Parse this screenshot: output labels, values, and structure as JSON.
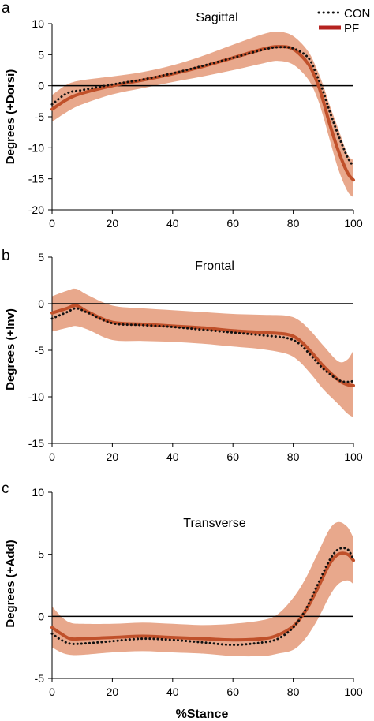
{
  "colors": {
    "band": "#e8a88c",
    "pf_line": "#c0502a",
    "con_dots": "#111111",
    "legend_pf": "#b5221f"
  },
  "legend": {
    "con_label": "CON",
    "pf_label": "PF",
    "position": "top-right"
  },
  "xlabel": "%Stance",
  "chart_data": [
    {
      "type": "line",
      "panel": "a",
      "title": "Sagittal",
      "ylabel": "Degrees (+Dorsi)",
      "xlim": [
        0,
        100
      ],
      "ylim": [
        -20,
        10
      ],
      "xticks": [
        0,
        20,
        40,
        60,
        80,
        100
      ],
      "yticks": [
        -20,
        -15,
        -10,
        -5,
        0,
        5,
        10
      ],
      "zero_line": true,
      "series": [
        {
          "name": "CON",
          "style": "dotted",
          "x": [
            0,
            5,
            10,
            20,
            30,
            40,
            50,
            60,
            70,
            75,
            80,
            85,
            88,
            90,
            92,
            95,
            98,
            100
          ],
          "y": [
            -3,
            -1.2,
            -0.7,
            0.2,
            1.0,
            2.0,
            3.2,
            4.5,
            5.8,
            6.2,
            6.0,
            4.5,
            1.5,
            -1.0,
            -4.0,
            -8.0,
            -11.5,
            -13
          ]
        },
        {
          "name": "PF",
          "style": "solid",
          "x": [
            0,
            5,
            10,
            20,
            30,
            40,
            50,
            60,
            70,
            75,
            80,
            85,
            88,
            90,
            92,
            95,
            98,
            100
          ],
          "y": [
            -3.8,
            -2.2,
            -1.2,
            0.0,
            0.9,
            1.9,
            3.1,
            4.5,
            5.9,
            6.3,
            5.9,
            3.5,
            0.5,
            -2.5,
            -6.0,
            -10.5,
            -14.0,
            -15.2
          ],
          "band_upper": [
            -1.5,
            0.2,
            0.9,
            1.5,
            2.2,
            3.3,
            4.8,
            6.6,
            8.3,
            8.7,
            8.0,
            5.5,
            2.5,
            0.0,
            -3.0,
            -7.0,
            -11.0,
            -12.0
          ],
          "band_lower": [
            -5.8,
            -4.2,
            -3.0,
            -1.4,
            -0.4,
            0.6,
            1.5,
            2.5,
            3.6,
            4.0,
            3.4,
            1.0,
            -2.0,
            -5.0,
            -8.5,
            -13.5,
            -17.0,
            -18.0
          ]
        }
      ]
    },
    {
      "type": "line",
      "panel": "b",
      "title": "Frontal",
      "ylabel": "Degrees (+Inv)",
      "xlim": [
        0,
        100
      ],
      "ylim": [
        -15,
        5
      ],
      "xticks": [
        0,
        20,
        40,
        60,
        80,
        100
      ],
      "yticks": [
        -15,
        -10,
        -5,
        0,
        5
      ],
      "zero_line": true,
      "series": [
        {
          "name": "CON",
          "style": "dotted",
          "x": [
            0,
            5,
            8,
            12,
            20,
            30,
            40,
            50,
            60,
            70,
            78,
            82,
            86,
            90,
            95,
            98,
            100
          ],
          "y": [
            -1.6,
            -0.9,
            -0.5,
            -1.0,
            -2.1,
            -2.3,
            -2.5,
            -2.8,
            -3.1,
            -3.4,
            -3.7,
            -4.3,
            -5.6,
            -7.0,
            -8.2,
            -8.4,
            -8.3
          ]
        },
        {
          "name": "PF",
          "style": "solid",
          "x": [
            0,
            5,
            8,
            12,
            20,
            30,
            40,
            50,
            60,
            70,
            78,
            82,
            86,
            90,
            95,
            98,
            100
          ],
          "y": [
            -1.0,
            -0.5,
            -0.2,
            -0.9,
            -2.0,
            -2.2,
            -2.4,
            -2.6,
            -2.9,
            -3.1,
            -3.3,
            -3.9,
            -5.2,
            -6.7,
            -8.2,
            -8.7,
            -8.8
          ],
          "band_upper": [
            0.8,
            1.4,
            1.6,
            0.9,
            -0.2,
            -0.5,
            -0.7,
            -0.9,
            -1.1,
            -1.2,
            -1.3,
            -1.8,
            -3.0,
            -4.5,
            -6.2,
            -6.0,
            -5.0
          ],
          "band_lower": [
            -3.0,
            -2.6,
            -2.4,
            -2.8,
            -3.9,
            -4.0,
            -4.1,
            -4.3,
            -4.6,
            -4.9,
            -5.4,
            -6.2,
            -7.6,
            -9.2,
            -10.8,
            -11.8,
            -12.2
          ]
        }
      ]
    },
    {
      "type": "line",
      "panel": "c",
      "title": "Transverse",
      "ylabel": "Degrees (+Add)",
      "xlim": [
        0,
        100
      ],
      "ylim": [
        -5,
        10
      ],
      "xticks": [
        0,
        20,
        40,
        60,
        80,
        100
      ],
      "yticks": [
        -5,
        0,
        5,
        10
      ],
      "zero_line": true,
      "series": [
        {
          "name": "CON",
          "style": "dotted",
          "x": [
            0,
            3,
            6,
            10,
            20,
            30,
            40,
            50,
            60,
            70,
            75,
            80,
            84,
            88,
            92,
            95,
            98,
            100
          ],
          "y": [
            -1.4,
            -1.9,
            -2.2,
            -2.2,
            -2.0,
            -1.8,
            -1.9,
            -2.1,
            -2.3,
            -2.1,
            -1.8,
            -0.9,
            0.5,
            2.5,
            4.5,
            5.4,
            5.4,
            4.6
          ]
        },
        {
          "name": "PF",
          "style": "solid",
          "x": [
            0,
            3,
            6,
            10,
            20,
            30,
            40,
            50,
            60,
            70,
            75,
            80,
            84,
            88,
            92,
            95,
            98,
            100
          ],
          "y": [
            -0.9,
            -1.4,
            -1.8,
            -1.8,
            -1.7,
            -1.6,
            -1.7,
            -1.8,
            -1.9,
            -1.8,
            -1.5,
            -0.8,
            0.4,
            2.2,
            4.2,
            5.0,
            5.0,
            4.5
          ],
          "band_upper": [
            0.8,
            0.0,
            -0.5,
            -0.6,
            -0.6,
            -0.5,
            -0.6,
            -0.7,
            -0.6,
            -0.3,
            0.2,
            1.5,
            3.0,
            5.0,
            7.0,
            7.6,
            7.2,
            6.3
          ],
          "band_lower": [
            -2.5,
            -2.9,
            -3.1,
            -3.1,
            -2.9,
            -2.8,
            -2.9,
            -3.0,
            -3.2,
            -3.2,
            -3.0,
            -2.7,
            -1.8,
            -0.3,
            1.6,
            2.6,
            2.9,
            2.6
          ]
        }
      ]
    }
  ]
}
